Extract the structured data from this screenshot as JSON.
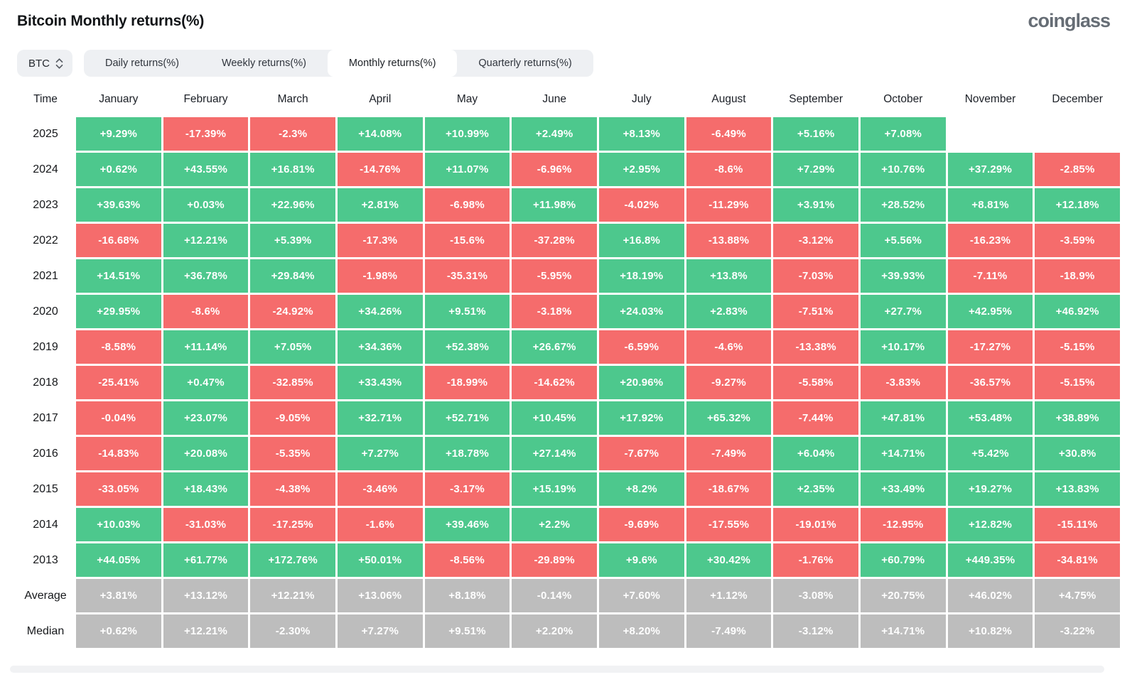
{
  "header": {
    "title": "Bitcoin Monthly returns(%)",
    "logo": "coinglass"
  },
  "controls": {
    "symbol": "BTC",
    "symbol_icon": "up-down-chevron-icon",
    "tabs": [
      {
        "label": "Daily returns(%)",
        "active": false
      },
      {
        "label": "Weekly returns(%)",
        "active": false
      },
      {
        "label": "Monthly returns(%)",
        "active": true
      },
      {
        "label": "Quarterly returns(%)",
        "active": false
      }
    ]
  },
  "colors": {
    "positive": "#4dc88d",
    "negative": "#f56c6c",
    "stat": "#bdbdbd",
    "tab_bar_bg": "#eef0f3",
    "logo_gray": "#666d75"
  },
  "chart_data": {
    "type": "heatmap",
    "title": "Bitcoin Monthly returns(%)",
    "columns": [
      "Time",
      "January",
      "February",
      "March",
      "April",
      "May",
      "June",
      "July",
      "August",
      "September",
      "October",
      "November",
      "December"
    ],
    "color_rule": "green = positive return, red = negative return, gray = Average/Median summary rows, blank = no data",
    "rows": [
      {
        "label": "2025",
        "kind": "year",
        "values": [
          "+9.29%",
          "-17.39%",
          "-2.3%",
          "+14.08%",
          "+10.99%",
          "+2.49%",
          "+8.13%",
          "-6.49%",
          "+5.16%",
          "+7.08%",
          null,
          null
        ]
      },
      {
        "label": "2024",
        "kind": "year",
        "values": [
          "+0.62%",
          "+43.55%",
          "+16.81%",
          "-14.76%",
          "+11.07%",
          "-6.96%",
          "+2.95%",
          "-8.6%",
          "+7.29%",
          "+10.76%",
          "+37.29%",
          "-2.85%"
        ]
      },
      {
        "label": "2023",
        "kind": "year",
        "values": [
          "+39.63%",
          "+0.03%",
          "+22.96%",
          "+2.81%",
          "-6.98%",
          "+11.98%",
          "-4.02%",
          "-11.29%",
          "+3.91%",
          "+28.52%",
          "+8.81%",
          "+12.18%"
        ]
      },
      {
        "label": "2022",
        "kind": "year",
        "values": [
          "-16.68%",
          "+12.21%",
          "+5.39%",
          "-17.3%",
          "-15.6%",
          "-37.28%",
          "+16.8%",
          "-13.88%",
          "-3.12%",
          "+5.56%",
          "-16.23%",
          "-3.59%"
        ]
      },
      {
        "label": "2021",
        "kind": "year",
        "values": [
          "+14.51%",
          "+36.78%",
          "+29.84%",
          "-1.98%",
          "-35.31%",
          "-5.95%",
          "+18.19%",
          "+13.8%",
          "-7.03%",
          "+39.93%",
          "-7.11%",
          "-18.9%"
        ]
      },
      {
        "label": "2020",
        "kind": "year",
        "values": [
          "+29.95%",
          "-8.6%",
          "-24.92%",
          "+34.26%",
          "+9.51%",
          "-3.18%",
          "+24.03%",
          "+2.83%",
          "-7.51%",
          "+27.7%",
          "+42.95%",
          "+46.92%"
        ]
      },
      {
        "label": "2019",
        "kind": "year",
        "values": [
          "-8.58%",
          "+11.14%",
          "+7.05%",
          "+34.36%",
          "+52.38%",
          "+26.67%",
          "-6.59%",
          "-4.6%",
          "-13.38%",
          "+10.17%",
          "-17.27%",
          "-5.15%"
        ]
      },
      {
        "label": "2018",
        "kind": "year",
        "values": [
          "-25.41%",
          "+0.47%",
          "-32.85%",
          "+33.43%",
          "-18.99%",
          "-14.62%",
          "+20.96%",
          "-9.27%",
          "-5.58%",
          "-3.83%",
          "-36.57%",
          "-5.15%"
        ]
      },
      {
        "label": "2017",
        "kind": "year",
        "values": [
          "-0.04%",
          "+23.07%",
          "-9.05%",
          "+32.71%",
          "+52.71%",
          "+10.45%",
          "+17.92%",
          "+65.32%",
          "-7.44%",
          "+47.81%",
          "+53.48%",
          "+38.89%"
        ]
      },
      {
        "label": "2016",
        "kind": "year",
        "values": [
          "-14.83%",
          "+20.08%",
          "-5.35%",
          "+7.27%",
          "+18.78%",
          "+27.14%",
          "-7.67%",
          "-7.49%",
          "+6.04%",
          "+14.71%",
          "+5.42%",
          "+30.8%"
        ]
      },
      {
        "label": "2015",
        "kind": "year",
        "values": [
          "-33.05%",
          "+18.43%",
          "-4.38%",
          "-3.46%",
          "-3.17%",
          "+15.19%",
          "+8.2%",
          "-18.67%",
          "+2.35%",
          "+33.49%",
          "+19.27%",
          "+13.83%"
        ]
      },
      {
        "label": "2014",
        "kind": "year",
        "values": [
          "+10.03%",
          "-31.03%",
          "-17.25%",
          "-1.6%",
          "+39.46%",
          "+2.2%",
          "-9.69%",
          "-17.55%",
          "-19.01%",
          "-12.95%",
          "+12.82%",
          "-15.11%"
        ]
      },
      {
        "label": "2013",
        "kind": "year",
        "values": [
          "+44.05%",
          "+61.77%",
          "+172.76%",
          "+50.01%",
          "-8.56%",
          "-29.89%",
          "+9.6%",
          "+30.42%",
          "-1.76%",
          "+60.79%",
          "+449.35%",
          "-34.81%"
        ]
      },
      {
        "label": "Average",
        "kind": "stat",
        "values": [
          "+3.81%",
          "+13.12%",
          "+12.21%",
          "+13.06%",
          "+8.18%",
          "-0.14%",
          "+7.60%",
          "+1.12%",
          "-3.08%",
          "+20.75%",
          "+46.02%",
          "+4.75%"
        ]
      },
      {
        "label": "Median",
        "kind": "stat",
        "values": [
          "+0.62%",
          "+12.21%",
          "-2.30%",
          "+7.27%",
          "+9.51%",
          "+2.20%",
          "+8.20%",
          "-7.49%",
          "-3.12%",
          "+14.71%",
          "+10.82%",
          "-3.22%"
        ]
      }
    ]
  }
}
